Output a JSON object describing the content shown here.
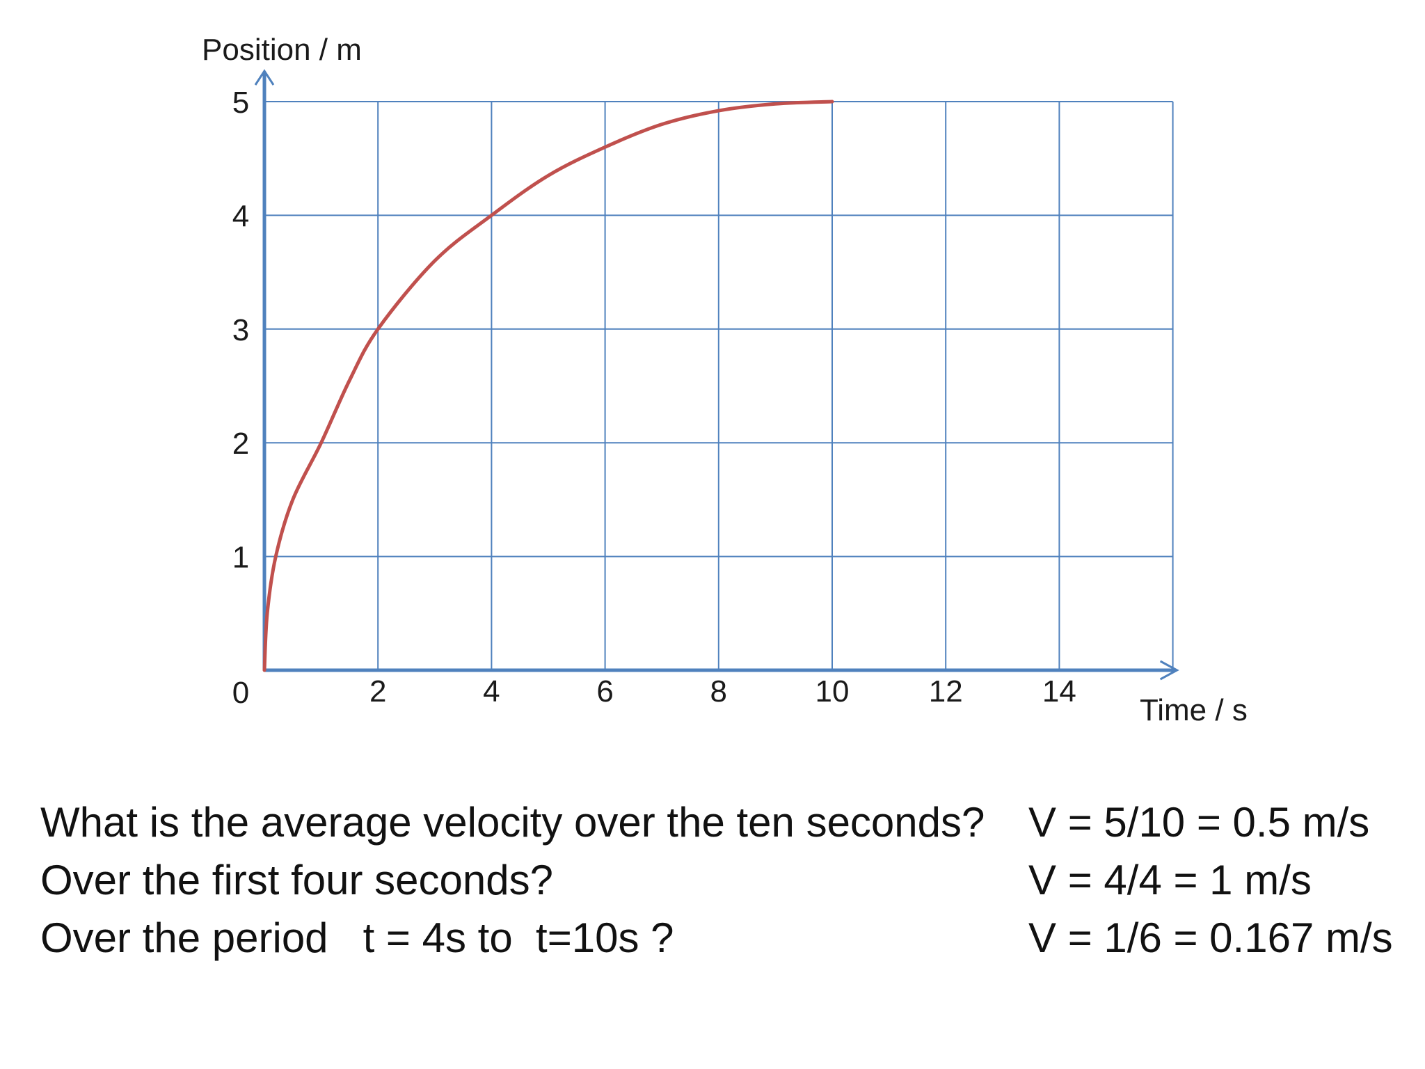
{
  "chart_data": {
    "type": "line",
    "xlabel": "Time / s",
    "ylabel": "Position / m",
    "xlim": [
      0,
      16
    ],
    "ylim": [
      0,
      5
    ],
    "x_ticks": [
      0,
      2,
      4,
      6,
      8,
      10,
      12,
      14
    ],
    "y_ticks": [
      0,
      1,
      2,
      3,
      4,
      5
    ],
    "x_tick_labels": [
      "2",
      "4",
      "6",
      "8",
      "10",
      "12",
      "14"
    ],
    "y_tick_labels": [
      "0",
      "1",
      "2",
      "3",
      "4",
      "5"
    ],
    "grid": true,
    "series": [
      {
        "x": [
          0,
          0.05,
          0.2,
          0.5,
          1,
          1.5,
          2,
          3,
          4,
          5,
          6,
          7,
          8,
          9,
          10
        ],
        "y": [
          0,
          0.5,
          1,
          1.5,
          2,
          2.55,
          3,
          3.6,
          4,
          4.35,
          4.6,
          4.8,
          4.92,
          4.98,
          5
        ],
        "color": "#c0504d"
      }
    ],
    "colors": {
      "axis": "#4f81bd",
      "grid": "#4f81bd",
      "curve": "#c0504d"
    }
  },
  "questions": [
    {
      "question": "What is the average velocity over the ten seconds?",
      "answer": "V = 5/10 = 0.5 m/s"
    },
    {
      "question": "Over the first four seconds?",
      "answer": "V = 4/4 = 1 m/s"
    },
    {
      "question": "Over the period   t = 4s to  t=10s ?",
      "answer": "V = 1/6 = 0.167 m/s"
    }
  ]
}
